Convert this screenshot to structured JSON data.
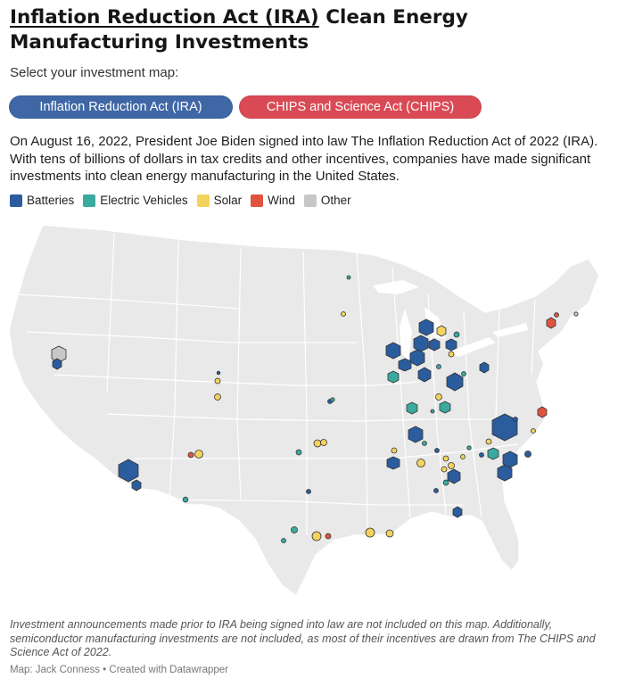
{
  "title": {
    "link_text": "Inflation Reduction Act (IRA)",
    "rest_text": " Clean Energy Manufacturing Investments"
  },
  "subtitle": "Select your investment map:",
  "buttons": {
    "ira": "Inflation Reduction Act (IRA)",
    "chips": "CHIPS and Science Act (CHIPS)"
  },
  "intro": "On August 16, 2022, President Joe Biden signed into law The Inflation Reduction Act of 2022 (IRA). With tens of billions of dollars in tax credits and other incentives, companies have made significant investments into clean energy manufacturing in the United States.",
  "legend": {
    "batteries": "Batteries",
    "ev": "Electric Vehicles",
    "solar": "Solar",
    "wind": "Wind",
    "other": "Other"
  },
  "colors": {
    "batteries": "#2a5c9e",
    "ev": "#3aa99f",
    "solar": "#f3d35e",
    "wind": "#e0533f",
    "other": "#c7c7c7",
    "map_fill": "#e9e9e9",
    "map_border": "#ffffff",
    "ira_button": "#3f67a5",
    "chips_button": "#d94a55"
  },
  "footnote": "Investment announcements made prior to IRA being signed into law are not included on this map. Additionally, semiconductor manufacturing investments are not included, as most of their incentives are drawn from The CHIPS and Science Act of 2022.",
  "credit": "Map: Jack Conness • Created with Datawrapper"
}
